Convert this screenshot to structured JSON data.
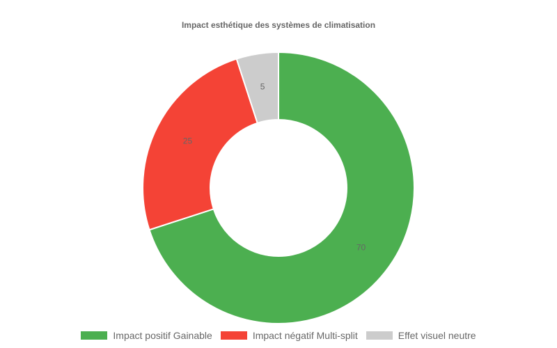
{
  "chart_data": {
    "type": "doughnut",
    "title": "Impact esthétique des systèmes de climatisation",
    "categories": [
      "Impact positif Gainable",
      "Impact négatif Multi-split",
      "Effet visuel neutre"
    ],
    "values": [
      70,
      25,
      5
    ],
    "data_labels": [
      "70",
      "25",
      "5"
    ],
    "colors": [
      "#4caf50",
      "#f44336",
      "#cccccc"
    ],
    "legend_position": "bottom"
  }
}
